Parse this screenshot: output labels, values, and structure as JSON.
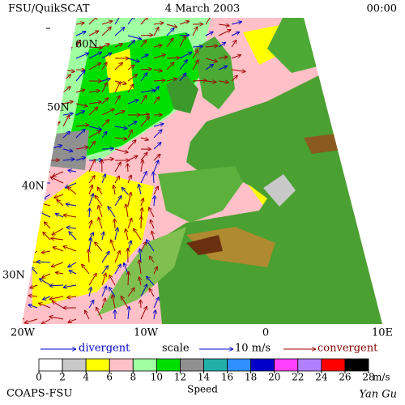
{
  "header": {
    "left": "FSU/QuikSCAT",
    "center": "4 March 2003",
    "right": "00:00"
  },
  "lat_labels": [
    "60N",
    "50N",
    "40N",
    "30N"
  ],
  "lon_labels": [
    "20W",
    "10W",
    "0",
    "10E"
  ],
  "legend": {
    "divergent": "divergent",
    "scale": "scale",
    "scale_value": "10 m/s",
    "convergent": "convergent"
  },
  "colorbar": {
    "label": "Speed",
    "unit": "m/s",
    "ticks": [
      0,
      2,
      4,
      6,
      8,
      10,
      12,
      14,
      16,
      18,
      20,
      22,
      24,
      26,
      28
    ],
    "colors": [
      "#ffffff",
      "#c8c8c8",
      "#ffff00",
      "#ffc0c8",
      "#a0ffa0",
      "#00e000",
      "#909090",
      "#20b0a8",
      "#3090ff",
      "#0000c8",
      "#ff40ff",
      "#b080ff",
      "#ff0000",
      "#000000"
    ]
  },
  "footer": {
    "left": "COAPS-FSU",
    "right": "Yan Gu"
  }
}
